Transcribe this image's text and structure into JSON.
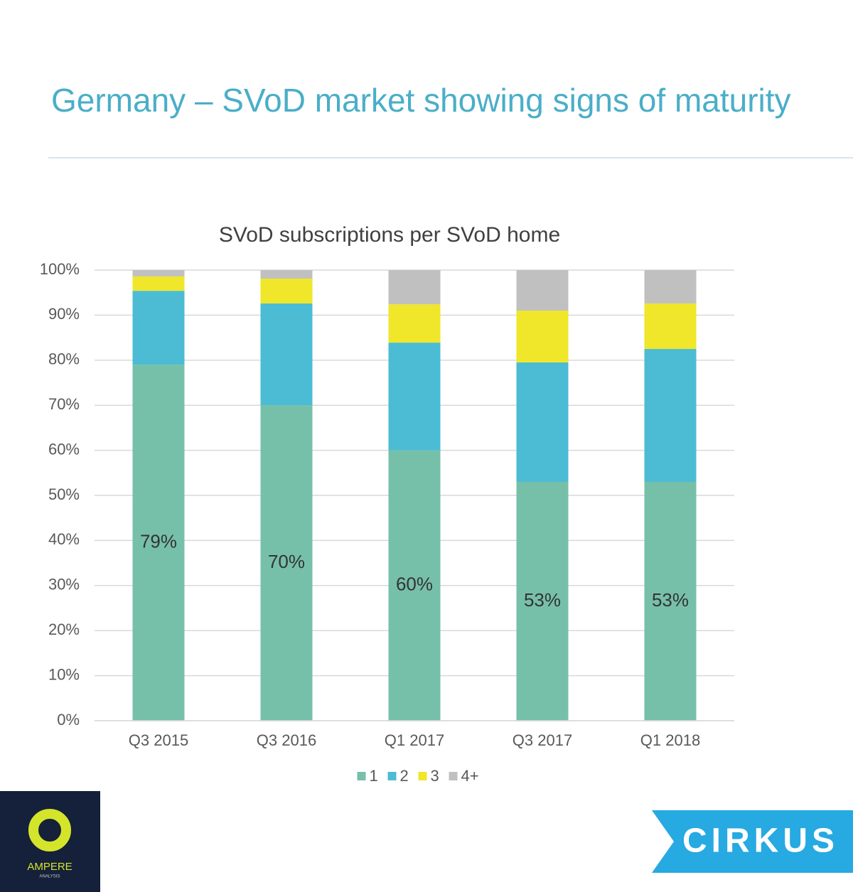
{
  "slide_title": "Germany – SVoD market showing signs of maturity",
  "chart_data": {
    "type": "bar",
    "stacked": true,
    "title": "SVoD subscriptions per SVoD home",
    "categories": [
      "Q3 2015",
      "Q3 2016",
      "Q1 2017",
      "Q3 2017",
      "Q1 2018"
    ],
    "series": [
      {
        "name": "1",
        "color": "#76c0aa",
        "values": [
          79,
          70,
          60,
          53,
          53
        ],
        "value_labels": [
          "79%",
          "70%",
          "60%",
          "53%",
          "53%"
        ]
      },
      {
        "name": "2",
        "color": "#4bbcd3",
        "values": [
          16.4,
          22.6,
          23.9,
          26.5,
          29.5
        ]
      },
      {
        "name": "3",
        "color": "#f0e62a",
        "values": [
          3.2,
          5.5,
          8.5,
          11.5,
          10.1
        ]
      },
      {
        "name": "4+",
        "color": "#c0c0c0",
        "values": [
          1.4,
          1.9,
          7.6,
          9.0,
          7.4
        ]
      }
    ],
    "ylim": [
      0,
      100
    ],
    "yticks": [
      {
        "value": 0,
        "label": "0%"
      },
      {
        "value": 10,
        "label": "10%"
      },
      {
        "value": 20,
        "label": "20%"
      },
      {
        "value": 30,
        "label": "30%"
      },
      {
        "value": 40,
        "label": "40%"
      },
      {
        "value": 50,
        "label": "50%"
      },
      {
        "value": 60,
        "label": "60%"
      },
      {
        "value": 70,
        "label": "70%"
      },
      {
        "value": 80,
        "label": "80%"
      },
      {
        "value": 90,
        "label": "90%"
      },
      {
        "value": 100,
        "label": "100%"
      }
    ],
    "grid": true,
    "legend": "bottom"
  },
  "logos": {
    "ampere": "AMPERE",
    "ampere_sub": "ANALYSIS",
    "cirkus": "CIRKUS"
  }
}
